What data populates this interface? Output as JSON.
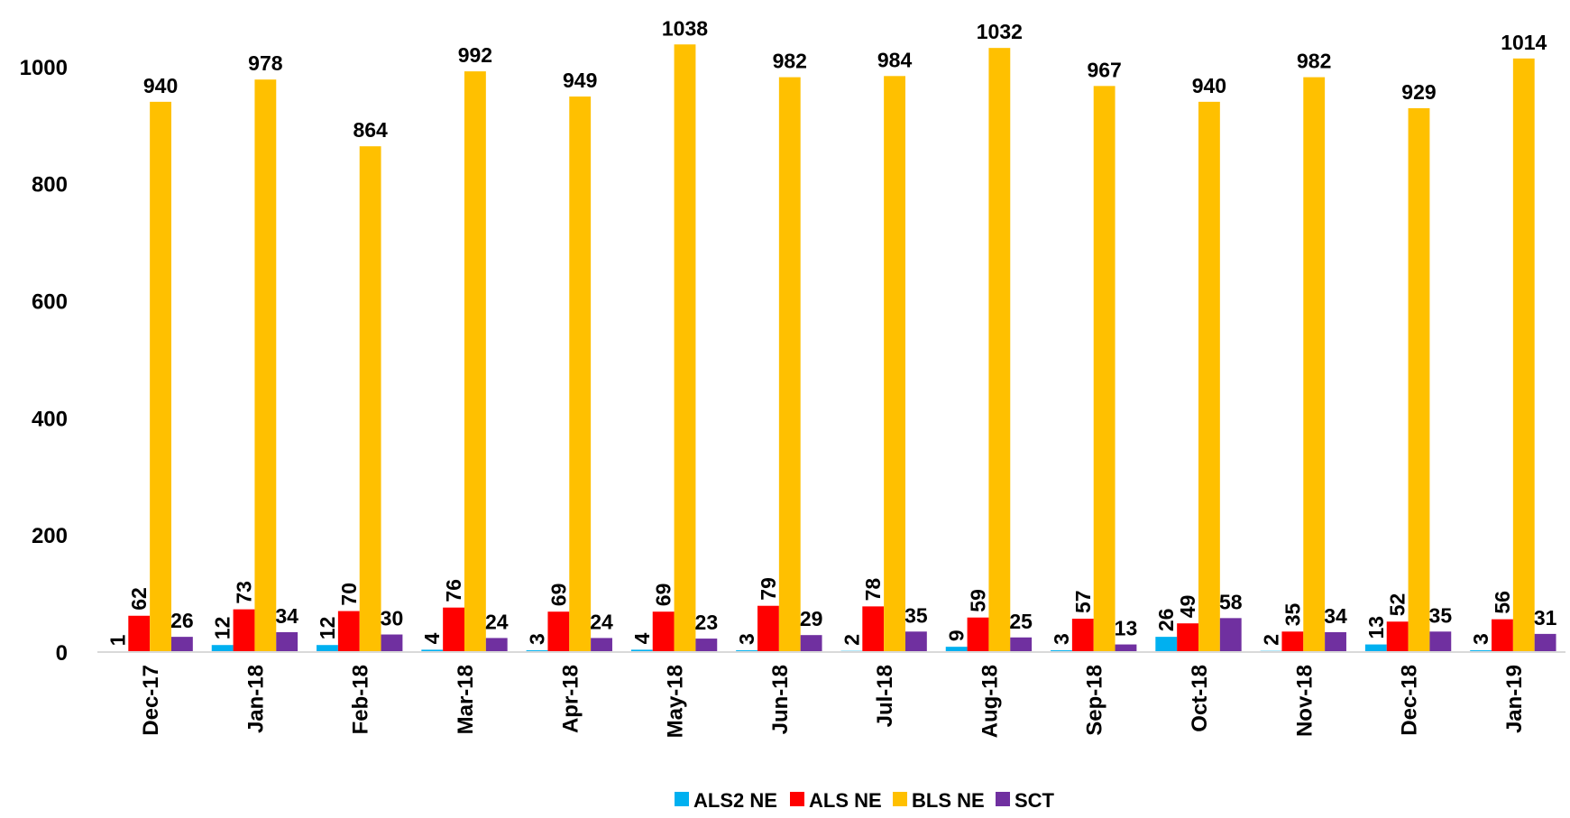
{
  "chart_data": {
    "type": "bar",
    "categories": [
      "Dec-17",
      "Jan-18",
      "Feb-18",
      "Mar-18",
      "Apr-18",
      "May-18",
      "Jun-18",
      "Jul-18",
      "Aug-18",
      "Sep-18",
      "Oct-18",
      "Nov-18",
      "Dec-18",
      "Jan-19"
    ],
    "series": [
      {
        "name": "ALS2 NE",
        "color": "#00b0f0",
        "values": [
          1,
          12,
          12,
          4,
          3,
          4,
          3,
          2,
          9,
          3,
          26,
          2,
          13,
          3
        ]
      },
      {
        "name": "ALS NE",
        "color": "#ff0000",
        "values": [
          62,
          73,
          70,
          76,
          69,
          69,
          79,
          78,
          59,
          57,
          49,
          35,
          52,
          56
        ]
      },
      {
        "name": "BLS NE",
        "color": "#ffc000",
        "values": [
          940,
          978,
          864,
          992,
          949,
          1038,
          982,
          984,
          1032,
          967,
          940,
          982,
          929,
          1014
        ]
      },
      {
        "name": "SCT",
        "color": "#7030a0",
        "values": [
          26,
          34,
          30,
          24,
          24,
          23,
          29,
          35,
          25,
          13,
          58,
          34,
          35,
          31
        ]
      }
    ],
    "ylim": [
      0,
      1080
    ],
    "yticks": [
      0,
      200,
      400,
      600,
      800,
      1000
    ],
    "grid": false,
    "legend": "bottom"
  }
}
